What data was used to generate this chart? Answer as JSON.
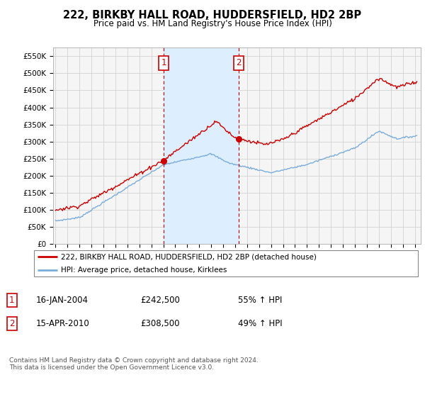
{
  "title": "222, BIRKBY HALL ROAD, HUDDERSFIELD, HD2 2BP",
  "subtitle": "Price paid vs. HM Land Registry's House Price Index (HPI)",
  "ylabel_ticks": [
    0,
    50000,
    100000,
    150000,
    200000,
    250000,
    300000,
    350000,
    400000,
    450000,
    500000,
    550000
  ],
  "ylabel_labels": [
    "£0",
    "£50K",
    "£100K",
    "£150K",
    "£200K",
    "£250K",
    "£300K",
    "£350K",
    "£400K",
    "£450K",
    "£500K",
    "£550K"
  ],
  "ylim": [
    0,
    575000
  ],
  "xlim_start": 1994.8,
  "xlim_end": 2025.5,
  "purchase1_x": 2004.04,
  "purchase1_y": 242500,
  "purchase2_x": 2010.29,
  "purchase2_y": 308500,
  "legend_line1": "222, BIRKBY HALL ROAD, HUDDERSFIELD, HD2 2BP (detached house)",
  "legend_line2": "HPI: Average price, detached house, Kirklees",
  "info1_date": "16-JAN-2004",
  "info1_price": "£242,500",
  "info1_pct": "55% ↑ HPI",
  "info2_date": "15-APR-2010",
  "info2_price": "£308,500",
  "info2_pct": "49% ↑ HPI",
  "footnote": "Contains HM Land Registry data © Crown copyright and database right 2024.\nThis data is licensed under the Open Government Licence v3.0.",
  "red_color": "#cc0000",
  "blue_color": "#7aacdc",
  "shade_color": "#ddeeff",
  "bg_color": "#ffffff",
  "grid_color": "#cccccc",
  "ax_bg": "#f5f5f5"
}
